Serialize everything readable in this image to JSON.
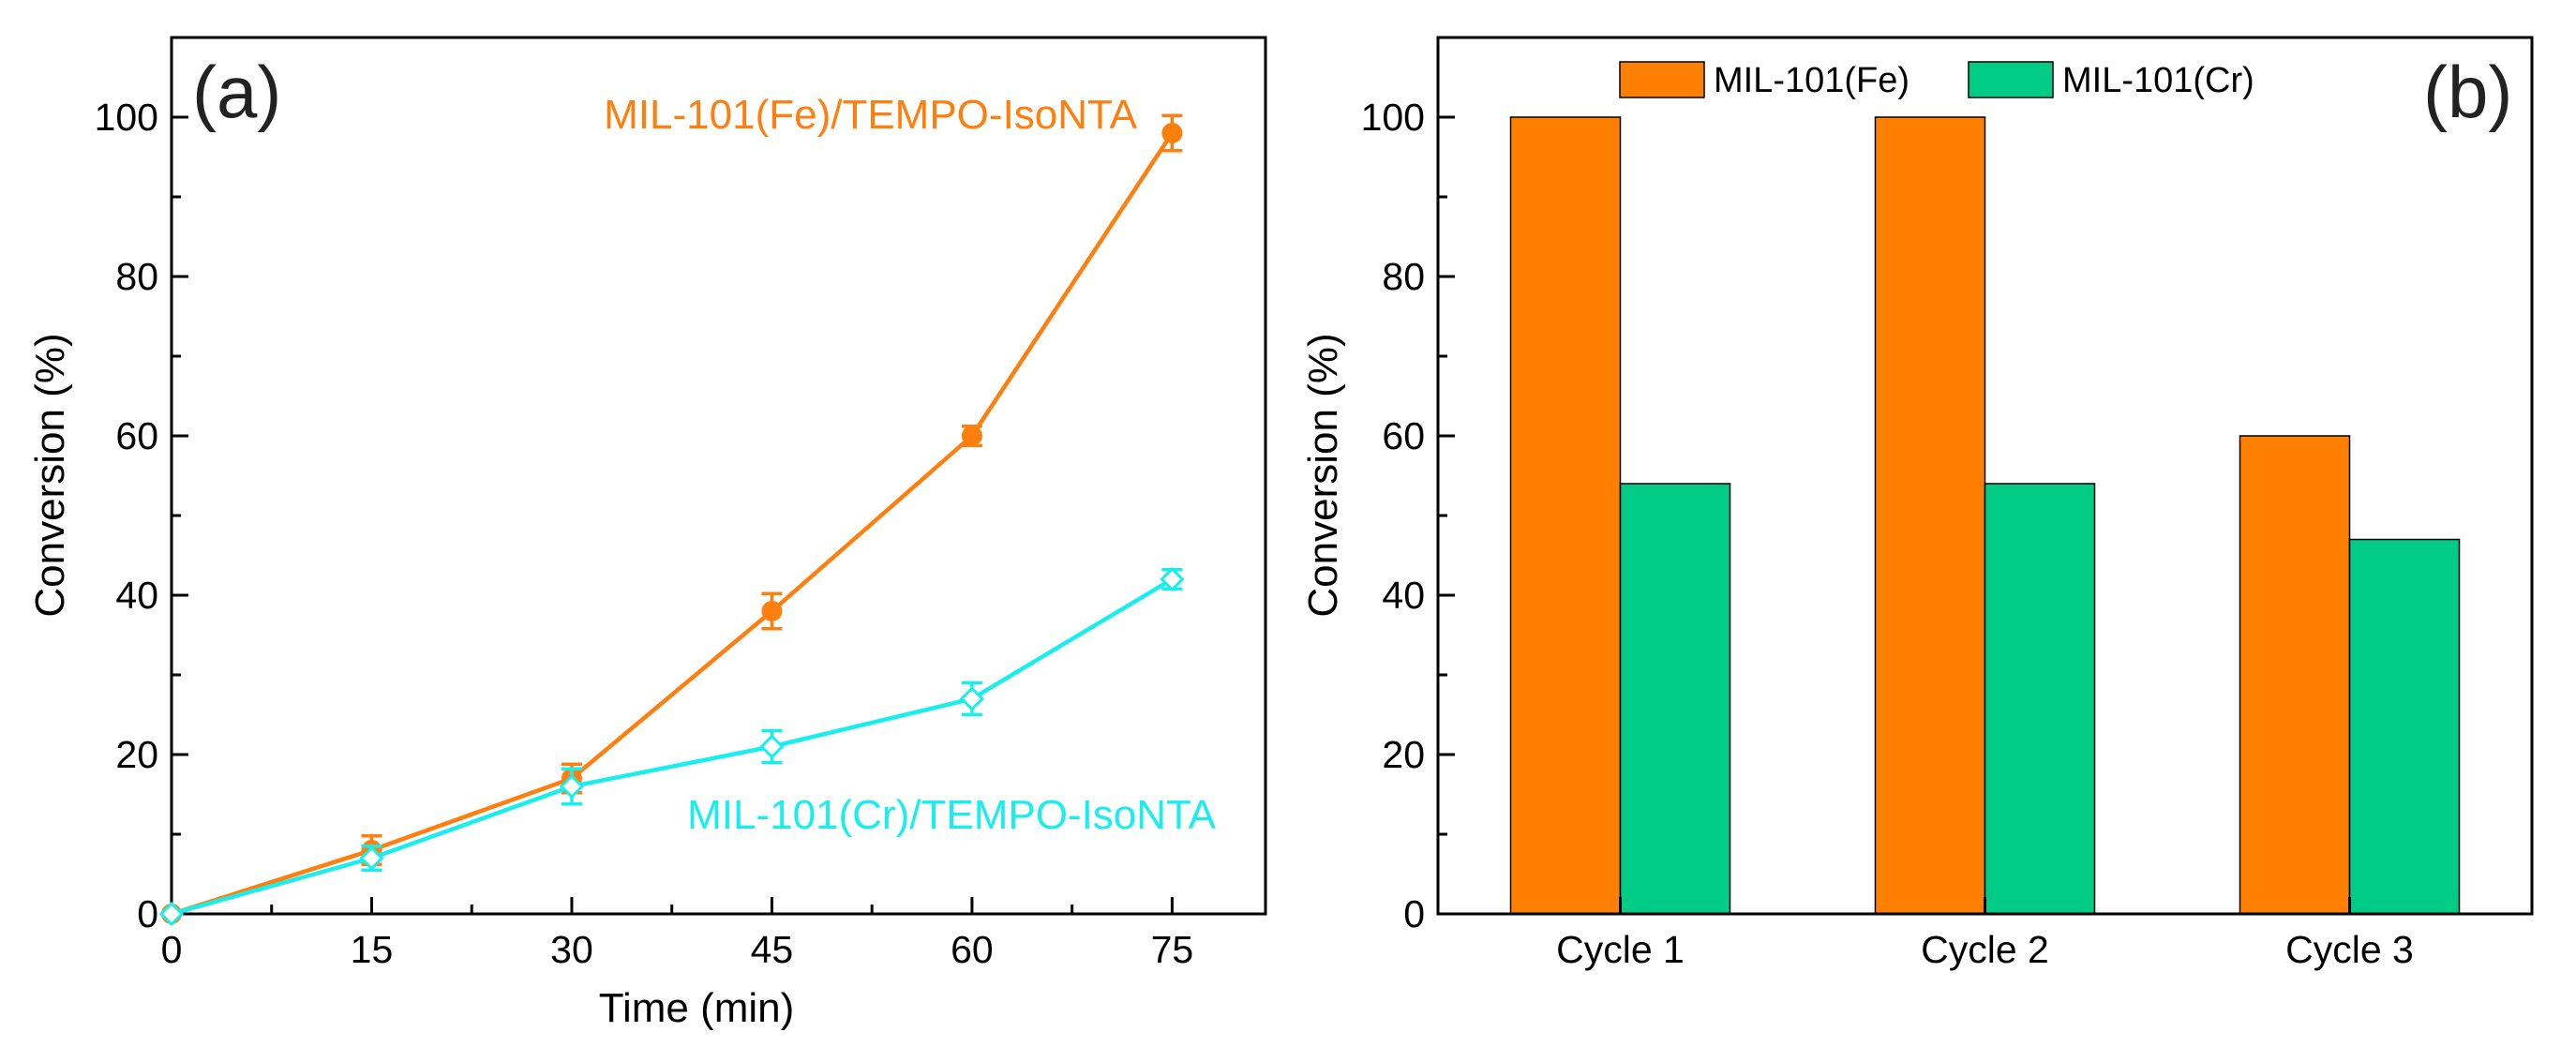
{
  "colors": {
    "fe_line": "#ff7f0e",
    "cr_line": "#19eeee",
    "fe_bar": "#ff7f00",
    "cr_bar": "#00cc88",
    "axis": "#000000"
  },
  "chart_data": [
    {
      "type": "line",
      "panel_label": "(a)",
      "xlabel": "Time (min)",
      "ylabel": "Conversion (%)",
      "xlim": [
        0,
        82
      ],
      "ylim": [
        0,
        110
      ],
      "x_ticks": [
        0,
        15,
        30,
        45,
        60,
        75
      ],
      "y_ticks": [
        0,
        20,
        40,
        60,
        80,
        100
      ],
      "series": [
        {
          "name": "MIL-101(Fe)/TEMPO-IsoNTA",
          "color": "#ff7f0e",
          "marker": "filled-circle",
          "x": [
            0,
            15,
            30,
            45,
            60,
            75
          ],
          "values": [
            0,
            8,
            17,
            38,
            60,
            98
          ],
          "errors": [
            0,
            1.8,
            1.8,
            2.2,
            1.2,
            2.2
          ]
        },
        {
          "name": "MIL-101(Cr)/TEMPO-IsoNTA",
          "color": "#19eeee",
          "marker": "open-diamond",
          "x": [
            0,
            15,
            30,
            45,
            60,
            75
          ],
          "values": [
            0,
            7,
            16,
            21,
            27,
            42
          ],
          "errors": [
            0,
            1.5,
            2.2,
            2.0,
            2.0,
            1.2
          ]
        }
      ]
    },
    {
      "type": "bar",
      "panel_label": "(b)",
      "xlabel": "",
      "ylabel": "Conversion (%)",
      "ylim": [
        0,
        110
      ],
      "y_ticks": [
        0,
        20,
        40,
        60,
        80,
        100
      ],
      "categories": [
        "Cycle 1",
        "Cycle 2",
        "Cycle 3"
      ],
      "legend": "top-center",
      "series": [
        {
          "name": "MIL-101(Fe)",
          "color": "#ff7f00",
          "values": [
            100,
            100,
            60
          ]
        },
        {
          "name": "MIL-101(Cr)",
          "color": "#00cc88",
          "values": [
            54,
            54,
            47
          ]
        }
      ]
    }
  ]
}
